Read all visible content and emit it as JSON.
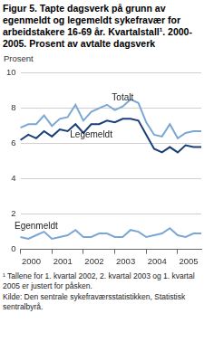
{
  "chart_data": {
    "type": "line",
    "title": "Figur 5. Tapte dagsverk på grunn av egenmeldt og legemeldt sykefravær for arbeidstakere 16-69 år. Kvartalstall¹. 2000-2005. Prosent av avtalte dagsverk",
    "y_label": "Prosent",
    "footnote": "¹ Tallene for 1. kvartal 2002, 2. kvartal 2003 og 1. kvartal 2005 er justert for påsken.",
    "source": "Kilde: Den sentrale sykefraværsstatistikken, Statistisk sentralbyrå.",
    "categories": [
      "2000",
      null,
      null,
      null,
      "2001",
      null,
      null,
      null,
      "2002",
      null,
      null,
      null,
      "2003",
      null,
      null,
      null,
      "2004",
      null,
      null,
      null,
      "2005",
      null,
      null,
      null
    ],
    "series": [
      {
        "name": "Totalt",
        "color": "#7ba7d4",
        "values": [
          6.9,
          7.1,
          7.1,
          7.6,
          7.0,
          7.4,
          7.5,
          8.2,
          7.3,
          7.8,
          8.0,
          8.2,
          7.9,
          8.1,
          8.5,
          8.3,
          7.2,
          6.5,
          6.4,
          7.1,
          6.3,
          6.6,
          6.7,
          6.7
        ]
      },
      {
        "name": "Legemeldt",
        "color": "#1a3f7a",
        "values": [
          6.2,
          6.5,
          6.3,
          6.7,
          6.4,
          6.8,
          6.7,
          7.1,
          6.6,
          7.1,
          7.1,
          7.3,
          7.2,
          7.4,
          7.4,
          7.3,
          6.5,
          5.7,
          5.5,
          5.8,
          5.5,
          5.9,
          5.8,
          5.8
        ]
      },
      {
        "name": "Egenmeldt",
        "color": "#7ba7d4",
        "values": [
          0.7,
          0.6,
          0.8,
          1.0,
          0.6,
          0.7,
          0.8,
          1.1,
          0.7,
          0.7,
          0.9,
          0.9,
          0.7,
          0.7,
          1.1,
          1.0,
          0.7,
          0.8,
          0.9,
          1.2,
          0.8,
          0.7,
          0.9,
          0.9
        ]
      }
    ],
    "ylim": [
      0,
      10
    ],
    "yticks": [
      0,
      2,
      4,
      6,
      8,
      10
    ],
    "grid": true
  }
}
